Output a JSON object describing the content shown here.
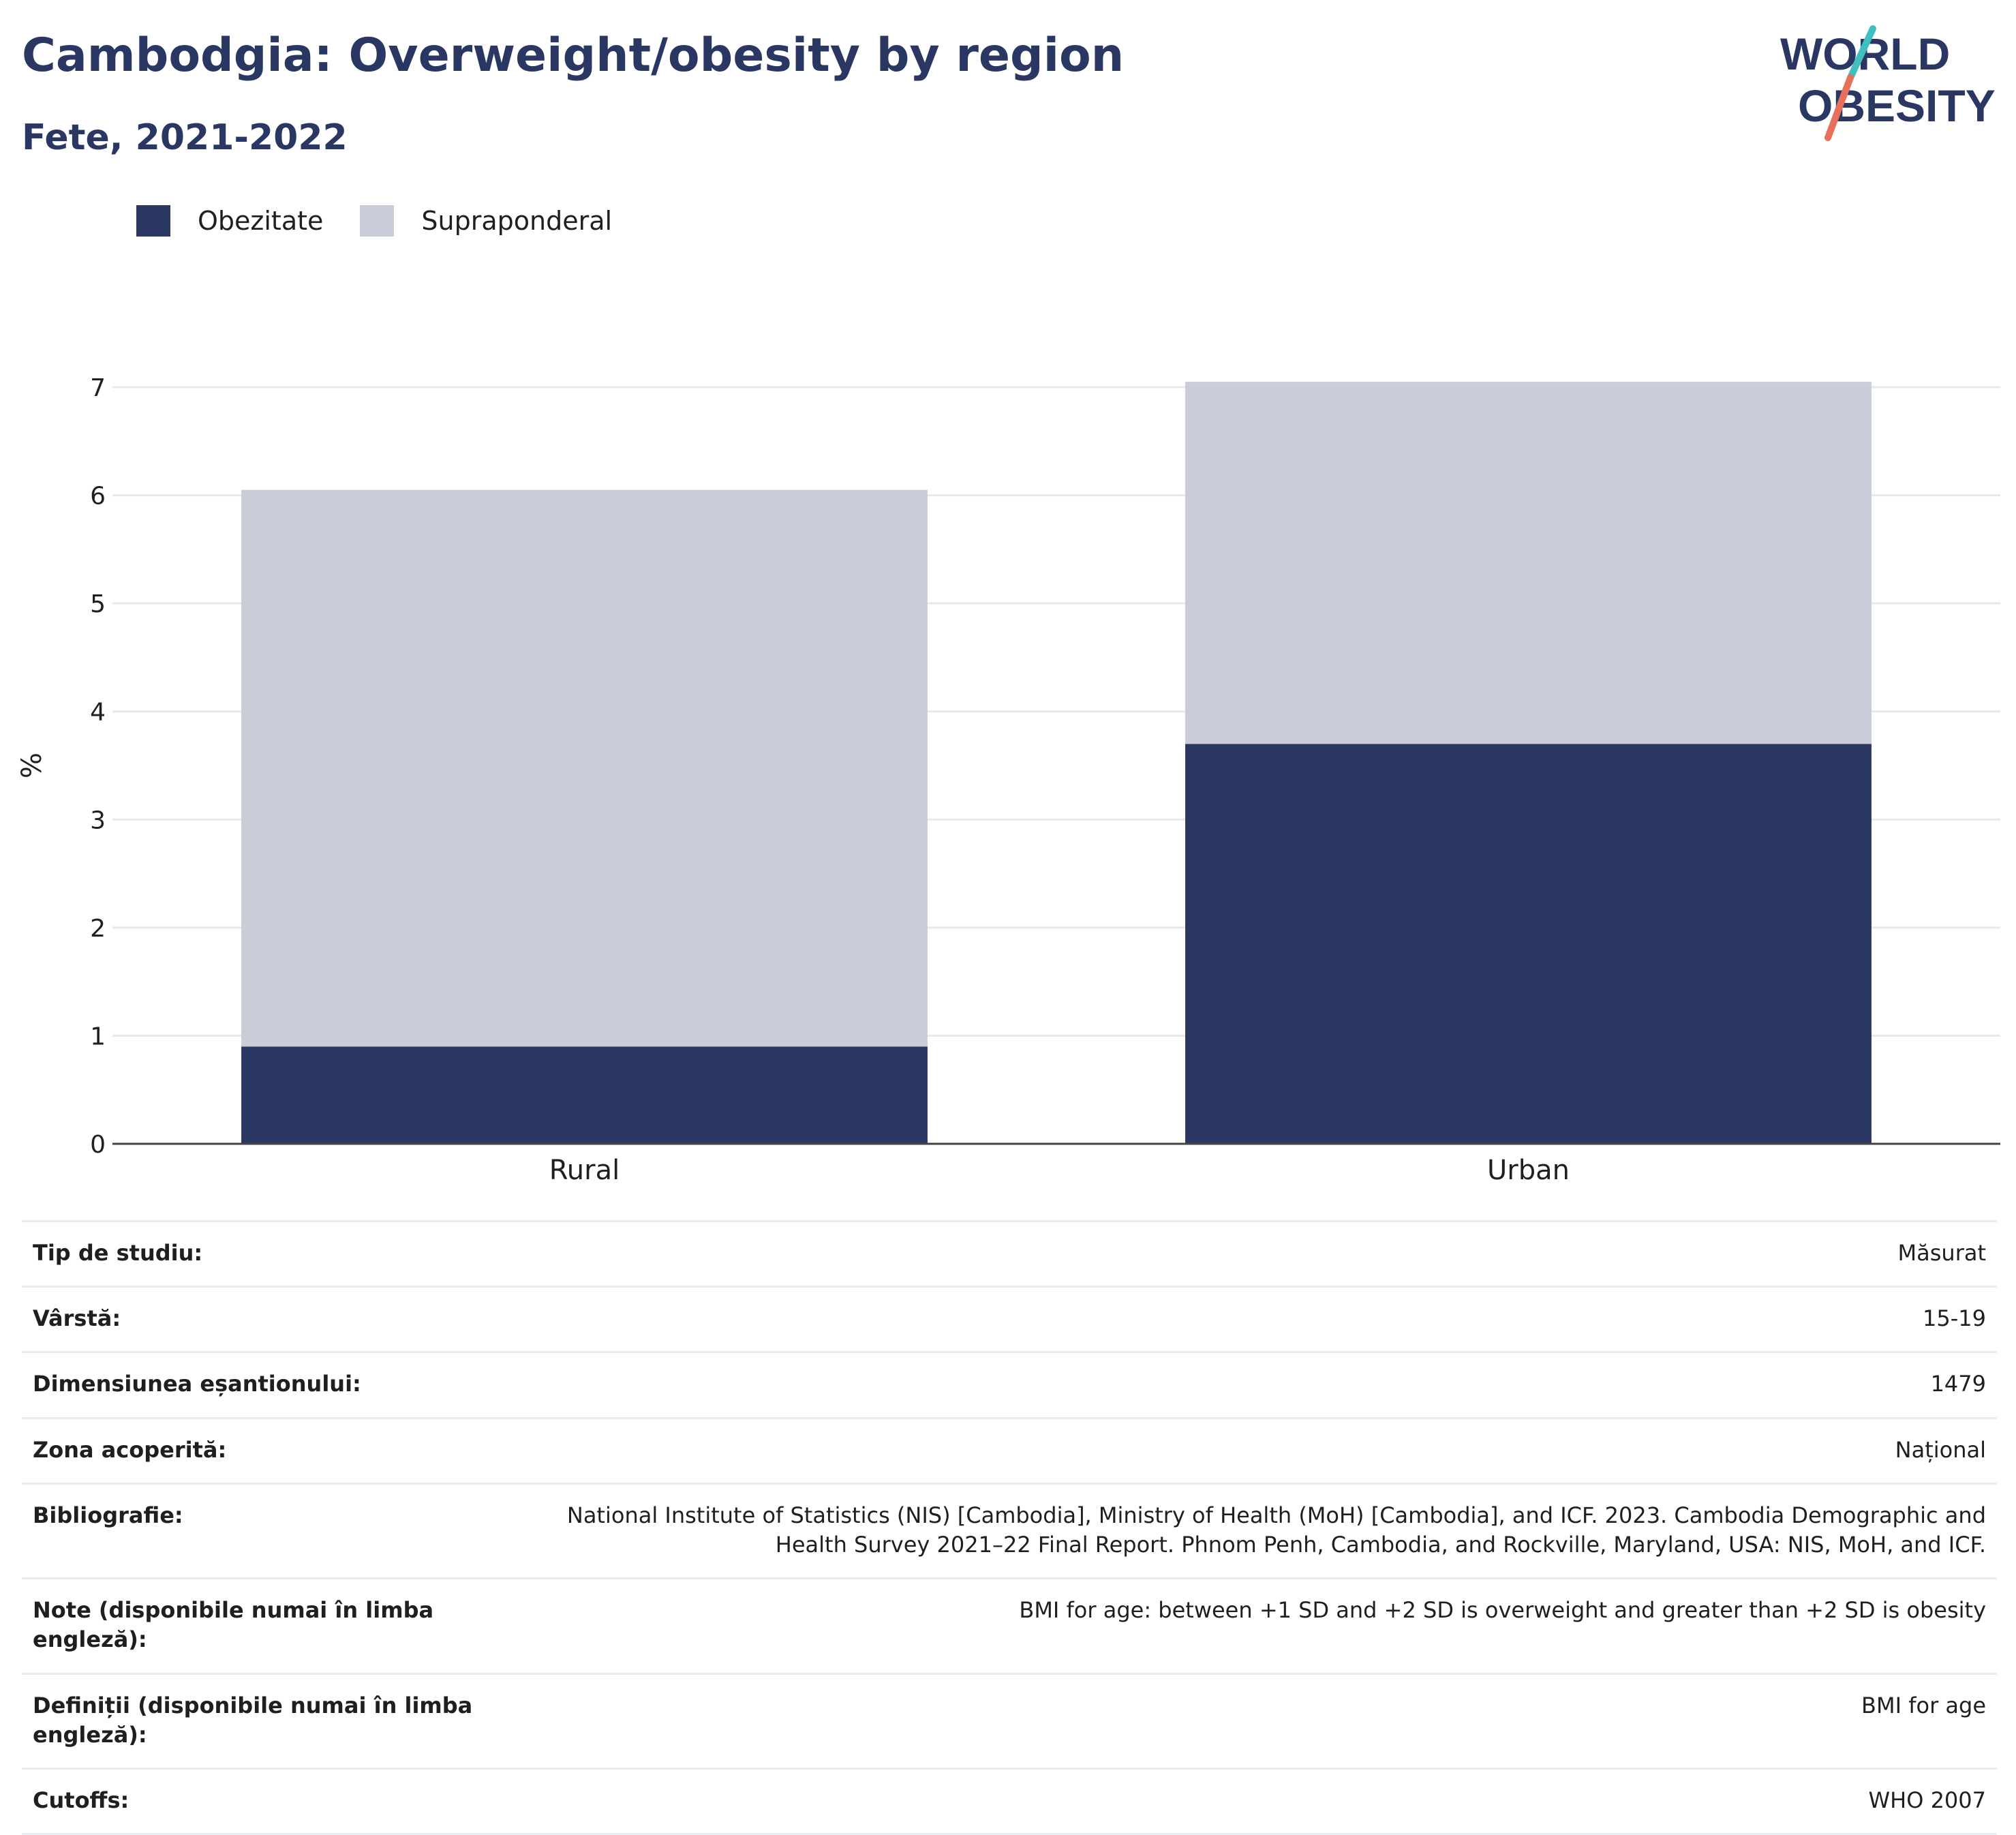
{
  "header": {
    "title": "Cambodgia: Overweight/obesity by region",
    "subtitle": "Fete, 2021-2022"
  },
  "logo": {
    "line1": "WORLD",
    "line2": "OBESITY",
    "colors": {
      "text": "#2a3762",
      "accent_teal": "#3fbfbf",
      "accent_coral": "#e8705a"
    }
  },
  "legend": [
    {
      "label": "Obezitate",
      "color": "#2a3762"
    },
    {
      "label": "Supraponderal",
      "color": "#cacdd8"
    }
  ],
  "chart_data": {
    "type": "bar",
    "stacked": true,
    "categories": [
      "Rural",
      "Urban"
    ],
    "series": [
      {
        "name": "Obezitate",
        "color": "#2a3762",
        "values": [
          0.9,
          3.7
        ]
      },
      {
        "name": "Supraponderal",
        "color": "#cacdd8",
        "values": [
          5.15,
          3.35
        ]
      }
    ],
    "title": "Cambodgia: Overweight/obesity by region",
    "subtitle": "Fete, 2021-2022",
    "xlabel": "",
    "ylabel": "%",
    "ylim": [
      0,
      7
    ],
    "yticks": [
      "0",
      "1",
      "2",
      "3",
      "4",
      "5",
      "6",
      "7"
    ],
    "grid": true,
    "legend_position": "top-left"
  },
  "details": [
    {
      "label": "Tip de studiu:",
      "value": "Măsurat"
    },
    {
      "label": "Vârstă:",
      "value": "15-19"
    },
    {
      "label": "Dimensiunea eșantionului:",
      "value": "1479"
    },
    {
      "label": "Zona acoperită:",
      "value": "Național"
    },
    {
      "label": "Bibliografie:",
      "value": "National Institute of Statistics (NIS) [Cambodia], Ministry of Health (MoH) [Cambodia], and ICF. 2023. Cambodia Demographic and Health Survey 2021–22 Final Report. Phnom Penh, Cambodia, and Rockville, Maryland, USA: NIS, MoH, and ICF."
    },
    {
      "label": "Note (disponibile numai în limba engleză):",
      "value": "BMI for age: between +1 SD and +2 SD is overweight and greater than +2 SD is obesity"
    },
    {
      "label": "Definiții (disponibile numai în limba engleză):",
      "value": "BMI for age"
    },
    {
      "label": "Cutoffs:",
      "value": "WHO 2007"
    }
  ]
}
